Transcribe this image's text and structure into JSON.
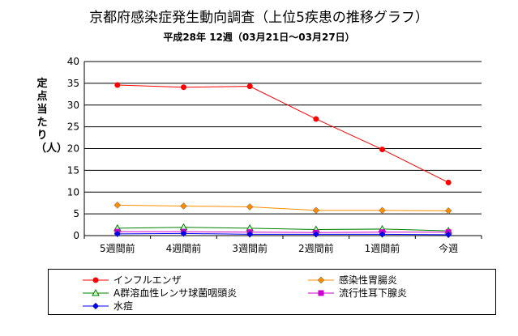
{
  "chart_data": {
    "type": "line",
    "title": "京都府感染症発生動向調査（上位5疾患の推移グラフ）",
    "subtitle": "平成28年 12週（03月21日～03月27日）",
    "xlabel": "",
    "ylabel": "定点当たり（人）",
    "ylim": [
      0,
      40
    ],
    "yticks": [
      0,
      5,
      10,
      15,
      20,
      25,
      30,
      35,
      40
    ],
    "grid": "horizontal",
    "legend_position": "bottom",
    "categories": [
      "5週間前",
      "4週間前",
      "3週間前",
      "2週間前",
      "1週間前",
      "今週"
    ],
    "series": [
      {
        "name": "インフルエンザ",
        "color": "#ff0000",
        "marker": "circle",
        "values": [
          34.6,
          34.1,
          34.3,
          26.8,
          19.8,
          12.2
        ]
      },
      {
        "name": "感染性胃腸炎",
        "color": "#ff8c00",
        "marker": "diamond",
        "values": [
          7.0,
          6.8,
          6.6,
          5.8,
          5.8,
          5.7
        ]
      },
      {
        "name": "A群溶血性レンサ球菌咽頭炎",
        "color": "#008000",
        "marker": "triangle",
        "values": [
          1.7,
          1.9,
          1.7,
          1.4,
          1.5,
          1.1
        ]
      },
      {
        "name": "流行性耳下腺炎",
        "color": "#cc00cc",
        "marker": "square",
        "values": [
          0.9,
          0.9,
          0.8,
          0.7,
          0.8,
          0.8
        ]
      },
      {
        "name": "水痘",
        "color": "#0000ff",
        "marker": "diamond",
        "values": [
          0.4,
          0.5,
          0.3,
          0.3,
          0.3,
          0.2
        ]
      }
    ]
  }
}
